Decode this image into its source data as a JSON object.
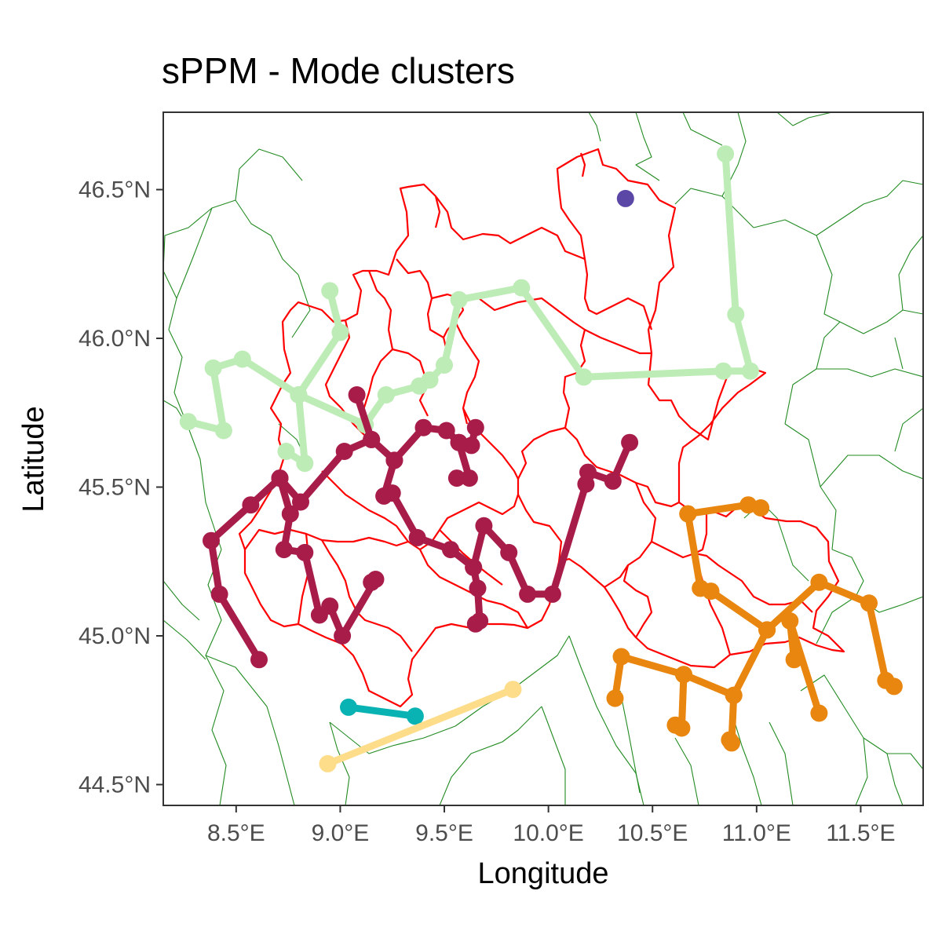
{
  "title": "sPPM - Mode clusters",
  "chart_data": {
    "type": "map",
    "title": "sPPM - Mode clusters",
    "xlabel": "Longitude",
    "ylabel": "Latitude",
    "xlim": [
      8.15,
      11.8
    ],
    "ylim": [
      44.43,
      46.76
    ],
    "x_ticks": [
      8.5,
      9.0,
      9.5,
      10.0,
      10.5,
      11.0,
      11.5
    ],
    "x_tick_labels": [
      "8.5°E",
      "9.0°E",
      "9.5°E",
      "10.0°E",
      "10.5°E",
      "11.0°E",
      "11.5°E"
    ],
    "y_ticks": [
      44.5,
      45.0,
      45.5,
      46.0,
      46.5
    ],
    "y_tick_labels": [
      "44.5°N",
      "45.0°N",
      "45.5°N",
      "46.0°N",
      "46.5°N"
    ],
    "grid": false,
    "legend": "none",
    "boundary_colors": {
      "region": "#ff0000",
      "neighbors": "#228b22"
    },
    "clusters": [
      {
        "color": "#bdecb6",
        "points": [
          [
            8.27,
            45.72
          ],
          [
            8.44,
            45.69
          ],
          [
            8.39,
            45.9
          ],
          [
            8.53,
            45.93
          ],
          [
            8.8,
            45.81
          ],
          [
            9.12,
            45.71
          ],
          [
            9.22,
            45.81
          ],
          [
            9.38,
            45.84
          ],
          [
            9.43,
            45.86
          ],
          [
            9.5,
            45.91
          ],
          [
            9.57,
            46.13
          ],
          [
            9.87,
            46.17
          ],
          [
            10.17,
            45.87
          ],
          [
            10.84,
            45.89
          ],
          [
            10.97,
            45.89
          ],
          [
            10.9,
            46.08
          ],
          [
            10.85,
            46.62
          ]
        ]
      },
      {
        "color": "#bdecb6",
        "points": [
          [
            8.74,
            45.62
          ],
          [
            8.83,
            45.58
          ],
          [
            8.8,
            45.81
          ],
          [
            9.0,
            46.02
          ],
          [
            8.95,
            46.16
          ]
        ]
      },
      {
        "color": "#a81c4a",
        "points": [
          [
            8.61,
            44.92
          ],
          [
            8.42,
            45.14
          ],
          [
            8.38,
            45.32
          ],
          [
            8.57,
            45.44
          ],
          [
            8.71,
            45.53
          ],
          [
            8.76,
            45.41
          ],
          [
            8.73,
            45.29
          ],
          [
            8.83,
            45.28
          ],
          [
            8.9,
            45.07
          ],
          [
            8.95,
            45.1
          ],
          [
            9.01,
            45.0
          ],
          [
            9.17,
            45.19
          ],
          [
            9.15,
            45.18
          ]
        ]
      },
      {
        "color": "#a81c4a",
        "points": [
          [
            8.71,
            45.53
          ],
          [
            8.81,
            45.45
          ],
          [
            9.02,
            45.62
          ],
          [
            9.15,
            45.66
          ],
          [
            9.08,
            45.81
          ]
        ]
      },
      {
        "color": "#a81c4a",
        "points": [
          [
            9.15,
            45.66
          ],
          [
            9.26,
            45.59
          ],
          [
            9.21,
            45.47
          ],
          [
            9.25,
            45.48
          ],
          [
            9.37,
            45.33
          ],
          [
            9.53,
            45.29
          ],
          [
            9.64,
            45.23
          ],
          [
            9.69,
            45.37
          ],
          [
            9.81,
            45.28
          ],
          [
            9.9,
            45.14
          ],
          [
            10.02,
            45.14
          ],
          [
            10.18,
            45.51
          ],
          [
            10.19,
            45.55
          ],
          [
            10.31,
            45.52
          ],
          [
            10.39,
            45.65
          ]
        ]
      },
      {
        "color": "#a81c4a",
        "points": [
          [
            9.26,
            45.59
          ],
          [
            9.4,
            45.7
          ],
          [
            9.51,
            45.69
          ],
          [
            9.57,
            45.65
          ],
          [
            9.63,
            45.64
          ],
          [
            9.65,
            45.7
          ]
        ]
      },
      {
        "color": "#a81c4a",
        "points": [
          [
            9.57,
            45.65
          ],
          [
            9.62,
            45.53
          ],
          [
            9.56,
            45.53
          ]
        ]
      },
      {
        "color": "#a81c4a",
        "points": [
          [
            9.64,
            45.23
          ],
          [
            9.66,
            45.16
          ],
          [
            9.67,
            45.05
          ],
          [
            9.65,
            45.04
          ]
        ]
      },
      {
        "color": "#e8860f",
        "points": [
          [
            10.67,
            45.41
          ],
          [
            10.96,
            45.44
          ],
          [
            11.02,
            45.43
          ]
        ]
      },
      {
        "color": "#e8860f",
        "points": [
          [
            10.67,
            45.41
          ],
          [
            10.73,
            45.16
          ],
          [
            10.78,
            45.15
          ],
          [
            11.05,
            45.02
          ],
          [
            11.3,
            45.18
          ],
          [
            11.54,
            45.11
          ],
          [
            11.62,
            44.85
          ],
          [
            11.66,
            44.83
          ]
        ]
      },
      {
        "color": "#e8860f",
        "points": [
          [
            11.05,
            45.02
          ],
          [
            10.89,
            44.8
          ],
          [
            10.88,
            44.64
          ],
          [
            10.87,
            44.65
          ]
        ]
      },
      {
        "color": "#e8860f",
        "points": [
          [
            10.89,
            44.8
          ],
          [
            10.65,
            44.87
          ],
          [
            10.64,
            44.69
          ],
          [
            10.61,
            44.7
          ]
        ]
      },
      {
        "color": "#e8860f",
        "points": [
          [
            10.65,
            44.87
          ],
          [
            10.35,
            44.93
          ],
          [
            10.32,
            44.79
          ]
        ]
      },
      {
        "color": "#e8860f",
        "points": [
          [
            11.18,
            44.92
          ],
          [
            11.16,
            45.05
          ],
          [
            11.3,
            44.74
          ]
        ]
      },
      {
        "color": "#0ab3b3",
        "points": [
          [
            9.04,
            44.76
          ],
          [
            9.36,
            44.73
          ]
        ]
      },
      {
        "color": "#fddc8a",
        "points": [
          [
            8.94,
            44.57
          ],
          [
            9.83,
            44.82
          ]
        ]
      },
      {
        "color": "#5b48a6",
        "points": [
          [
            10.37,
            46.47
          ]
        ]
      }
    ]
  }
}
